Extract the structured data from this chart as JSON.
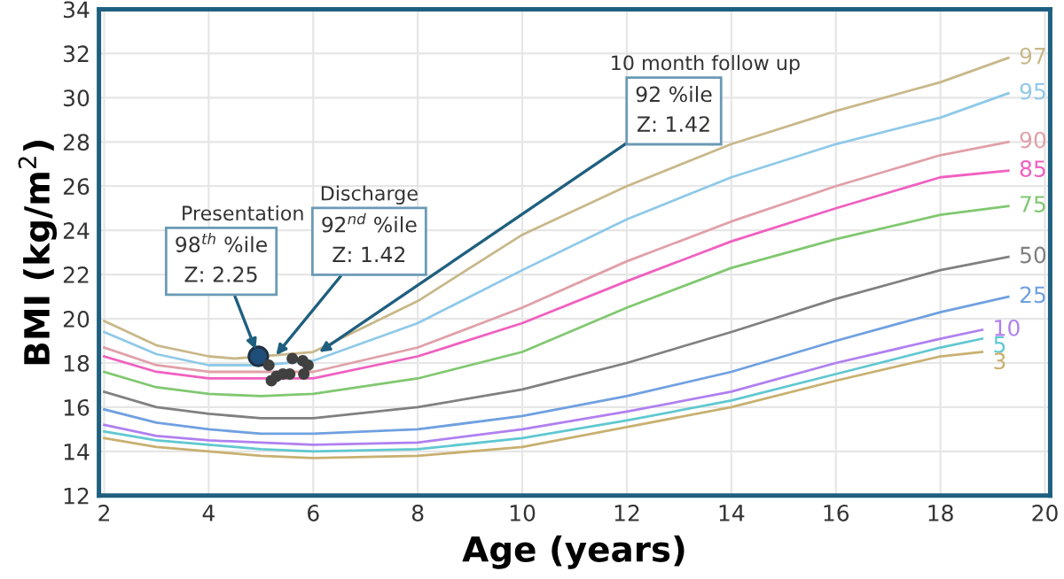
{
  "chart_data": {
    "type": "line",
    "xlabel": "Age (years)",
    "ylabel": "BMI (kg/m$^{2}$)",
    "xlim": [
      1.9,
      20.1
    ],
    "ylim": [
      12,
      34
    ],
    "xticks": [
      2,
      4,
      6,
      8,
      10,
      12,
      14,
      16,
      18,
      20
    ],
    "yticks": [
      12,
      14,
      16,
      18,
      20,
      22,
      24,
      26,
      28,
      30,
      32,
      34
    ],
    "grid": true,
    "marker": "none",
    "line_style": "solid",
    "series": [
      {
        "name": "97",
        "color": "#c8b88a",
        "x": [
          2,
          3,
          4,
          4.5,
          6,
          8,
          10,
          12,
          14,
          16,
          18,
          19.3
        ],
        "values": [
          19.9,
          18.8,
          18.3,
          18.2,
          18.5,
          20.8,
          23.8,
          26.0,
          27.9,
          29.4,
          30.7,
          31.8
        ]
      },
      {
        "name": "95",
        "color": "#8fc9e8",
        "x": [
          2,
          3,
          4,
          5,
          6,
          8,
          10,
          12,
          14,
          16,
          18,
          19.3
        ],
        "values": [
          19.4,
          18.4,
          17.9,
          17.9,
          18.1,
          19.8,
          22.2,
          24.5,
          26.4,
          27.9,
          29.1,
          30.2
        ]
      },
      {
        "name": "90",
        "color": "#e0a0a8",
        "x": [
          2,
          3,
          4,
          5,
          6,
          8,
          10,
          12,
          14,
          16,
          18,
          19.3
        ],
        "values": [
          18.7,
          17.9,
          17.6,
          17.6,
          17.6,
          18.7,
          20.5,
          22.6,
          24.4,
          26.0,
          27.4,
          28.0
        ]
      },
      {
        "name": "85",
        "color": "#f060c0",
        "x": [
          2,
          3,
          4,
          5,
          6,
          8,
          10,
          12,
          14,
          16,
          18,
          19.3
        ],
        "values": [
          18.3,
          17.6,
          17.3,
          17.3,
          17.3,
          18.3,
          19.8,
          21.7,
          23.5,
          25.0,
          26.4,
          26.7
        ]
      },
      {
        "name": "75",
        "color": "#80c870",
        "x": [
          2,
          3,
          4,
          5,
          6,
          8,
          10,
          12,
          14,
          16,
          18,
          19.3
        ],
        "values": [
          17.6,
          16.9,
          16.6,
          16.5,
          16.6,
          17.3,
          18.5,
          20.5,
          22.3,
          23.6,
          24.7,
          25.1
        ]
      },
      {
        "name": "50",
        "color": "#808080",
        "x": [
          2,
          3,
          4,
          5,
          6,
          8,
          10,
          12,
          14,
          16,
          18,
          19.3
        ],
        "values": [
          16.7,
          16.0,
          15.7,
          15.5,
          15.5,
          16.0,
          16.8,
          18.0,
          19.4,
          20.9,
          22.2,
          22.8
        ]
      },
      {
        "name": "25",
        "color": "#6fa0e0",
        "x": [
          2,
          3,
          4,
          5,
          6,
          8,
          10,
          12,
          14,
          16,
          18,
          19.3
        ],
        "values": [
          15.9,
          15.3,
          15.0,
          14.8,
          14.8,
          15.0,
          15.6,
          16.5,
          17.6,
          19.0,
          20.3,
          21.0
        ]
      },
      {
        "name": "10",
        "color": "#b080f0",
        "x": [
          2,
          3,
          4,
          5,
          6,
          8,
          10,
          12,
          14,
          16,
          18,
          18.8
        ],
        "values": [
          15.2,
          14.7,
          14.5,
          14.4,
          14.3,
          14.4,
          15.0,
          15.8,
          16.7,
          18.0,
          19.1,
          19.5
        ]
      },
      {
        "name": "5",
        "color": "#60c8d0",
        "x": [
          2,
          3,
          4,
          5,
          6,
          8,
          10,
          12,
          14,
          16,
          18,
          18.8
        ],
        "values": [
          14.9,
          14.5,
          14.3,
          14.1,
          14.0,
          14.1,
          14.6,
          15.4,
          16.3,
          17.5,
          18.7,
          19.1
        ]
      },
      {
        "name": "3",
        "color": "#c8b070",
        "x": [
          2,
          3,
          4,
          5,
          6,
          8,
          10,
          12,
          14,
          16,
          18,
          18.8
        ],
        "values": [
          14.6,
          14.2,
          14.0,
          13.8,
          13.7,
          13.8,
          14.2,
          15.1,
          16.0,
          17.2,
          18.3,
          18.5
        ]
      },
      {
        "type": "scatter",
        "color": "#1f4e79",
        "marker": "circle",
        "x": [
          4.95
        ],
        "values": [
          18.3
        ]
      },
      {
        "type": "scatter",
        "color": "#404040",
        "marker": "circle",
        "x": [
          5.15,
          5.2,
          5.3,
          5.42,
          5.55,
          5.6,
          5.8,
          5.9,
          5.82
        ],
        "values": [
          17.9,
          17.2,
          17.4,
          17.5,
          17.5,
          18.2,
          18.1,
          17.9,
          17.5
        ]
      }
    ],
    "annotations": [
      "Presentation",
      {
        "text": "98$^{th}$ %ile\nZ: 2.25",
        "x": 4.95,
        "y": 18.3
      },
      "Discharge",
      {
        "text": "92$^{nd}$ %ile\nZ: 1.42",
        "x": 5.2,
        "y": 18.1
      },
      "10 month follow up",
      {
        "text": "92 %ile\nZ: 1.42",
        "x": 6.0,
        "y": 18.3
      }
    ]
  }
}
